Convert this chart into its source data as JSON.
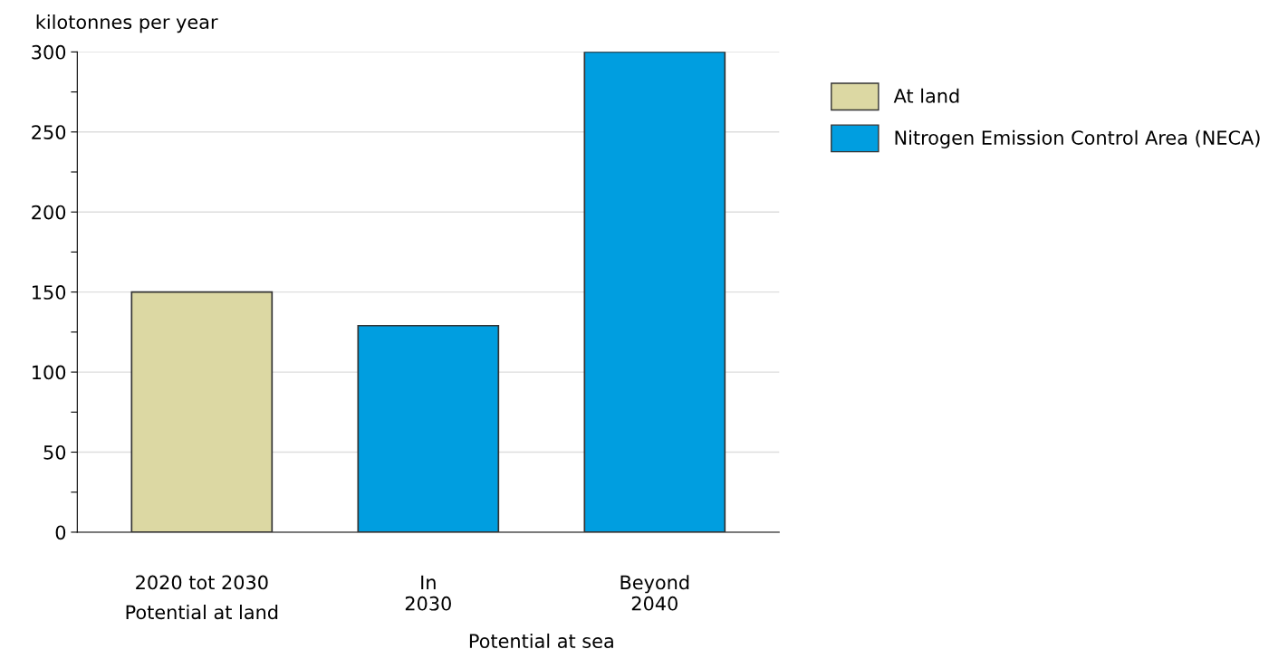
{
  "chart_data": {
    "type": "bar",
    "ylabel": "kilotonnes per year",
    "categories": [
      "2020 tot 2030",
      "In\n2030",
      "Beyond\n2040"
    ],
    "series": [
      {
        "name": "At land",
        "color": "#dcd8a3",
        "values": [
          150,
          null,
          null
        ]
      },
      {
        "name": "Nitrogen Emission Control Area (NECA)",
        "color": "#009ee0",
        "values": [
          null,
          129,
          300
        ]
      }
    ],
    "ylim": [
      0,
      300
    ],
    "yticks": [
      0,
      {
        "value": 25,
        "label": null
      },
      50,
      {
        "value": 75,
        "label": null
      },
      100,
      {
        "value": 125,
        "label": null
      },
      150,
      {
        "value": 175,
        "label": null
      },
      200,
      {
        "value": 225,
        "label": null
      },
      250,
      {
        "value": 275,
        "label": null
      },
      300
    ],
    "grid": "y",
    "legend": "top right",
    "annotations": [
      "Potential at land",
      "Potential at sea"
    ]
  }
}
